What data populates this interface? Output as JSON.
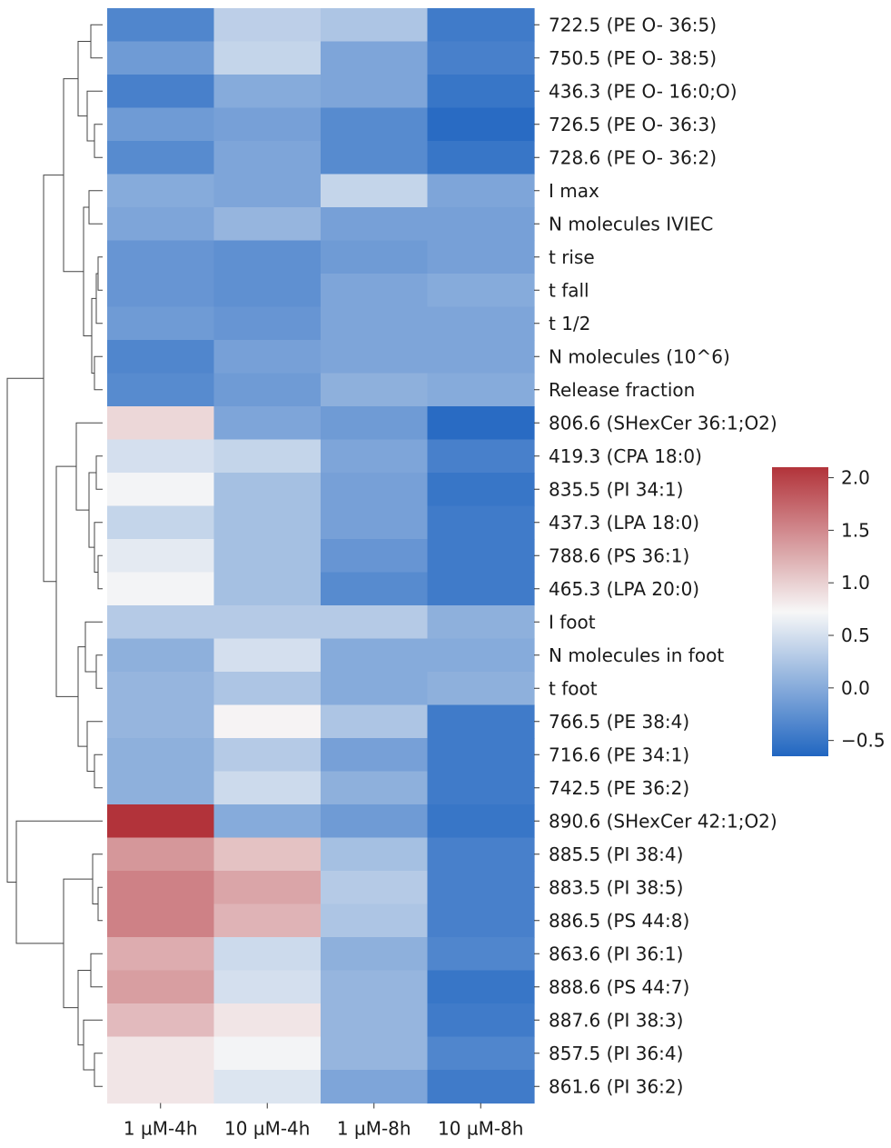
{
  "chart_data": {
    "type": "heatmap",
    "title": "",
    "xlabel": "",
    "ylabel": "",
    "columns": [
      "1 µM-4h",
      "10 µM-4h",
      "1 µM-8h",
      "10 µM-8h"
    ],
    "rows": [
      "722.5 (PE O- 36:5)",
      "750.5 (PE O- 38:5)",
      "436.3 (PE O- 16:0;O)",
      "726.5 (PE O- 36:3)",
      "728.6 (PE O- 36:2)",
      "I max",
      "N molecules IVIEC",
      "t rise",
      "t fall",
      "t 1/2",
      "N molecules (10^6)",
      "Release fraction",
      "806.6 (SHexCer 36:1;O2)",
      "419.3 (CPA 18:0)",
      "835.5 (PI 34:1)",
      "437.3 (LPA 18:0)",
      "788.6 (PS 36:1)",
      "465.3 (LPA 20:0)",
      "I foot",
      "N molecules in foot",
      "t foot",
      "766.5 (PE 38:4)",
      "716.6 (PE 34:1)",
      "742.5 (PE 36:2)",
      "890.6 (SHexCer 42:1;O2)",
      "885.5 (PI 38:4)",
      "883.5 (PI 38:5)",
      "886.5 (PS 44:8)",
      "863.6 (PI 36:1)",
      "888.6 (PS 44:7)",
      "887.6 (PI 38:3)",
      "857.5 (PI 36:4)",
      "861.6 (PI 36:2)"
    ],
    "values": [
      [
        -0.35,
        0.35,
        0.25,
        -0.45
      ],
      [
        -0.15,
        0.4,
        -0.05,
        -0.4
      ],
      [
        -0.4,
        0.0,
        -0.05,
        -0.5
      ],
      [
        -0.15,
        -0.1,
        -0.3,
        -0.6
      ],
      [
        -0.3,
        -0.05,
        -0.3,
        -0.5
      ],
      [
        0.0,
        -0.05,
        0.4,
        -0.05
      ],
      [
        -0.05,
        0.1,
        -0.1,
        -0.1
      ],
      [
        -0.2,
        -0.25,
        -0.15,
        -0.1
      ],
      [
        -0.2,
        -0.25,
        -0.05,
        0.0
      ],
      [
        -0.15,
        -0.2,
        -0.05,
        -0.05
      ],
      [
        -0.35,
        -0.1,
        -0.05,
        -0.05
      ],
      [
        -0.3,
        -0.15,
        0.05,
        0.0
      ],
      [
        0.95,
        -0.05,
        -0.15,
        -0.6
      ],
      [
        0.5,
        0.4,
        -0.05,
        -0.4
      ],
      [
        0.7,
        0.2,
        -0.1,
        -0.5
      ],
      [
        0.4,
        0.2,
        -0.1,
        -0.45
      ],
      [
        0.6,
        0.2,
        -0.2,
        -0.45
      ],
      [
        0.7,
        0.2,
        -0.3,
        -0.45
      ],
      [
        0.3,
        0.3,
        0.3,
        0.05
      ],
      [
        0.05,
        0.5,
        0.0,
        0.0
      ],
      [
        0.1,
        0.25,
        0.0,
        0.05
      ],
      [
        0.1,
        0.75,
        0.25,
        -0.45
      ],
      [
        0.05,
        0.3,
        -0.1,
        -0.45
      ],
      [
        0.05,
        0.45,
        0.05,
        -0.45
      ],
      [
        2.1,
        0.0,
        -0.15,
        -0.5
      ],
      [
        1.4,
        1.1,
        0.2,
        -0.4
      ],
      [
        1.55,
        1.3,
        0.3,
        -0.4
      ],
      [
        1.55,
        1.2,
        0.25,
        -0.4
      ],
      [
        1.25,
        0.45,
        0.05,
        -0.35
      ],
      [
        1.35,
        0.5,
        0.1,
        -0.5
      ],
      [
        1.15,
        0.85,
        0.1,
        -0.45
      ],
      [
        0.85,
        0.7,
        0.1,
        -0.35
      ],
      [
        0.85,
        0.55,
        -0.05,
        -0.45
      ]
    ],
    "colorbar": {
      "min": -0.65,
      "max": 2.1,
      "ticks": [
        2.0,
        1.5,
        1.0,
        0.5,
        0.0,
        -0.5
      ],
      "tick_labels": [
        "2.0",
        "1.5",
        "1.0",
        "0.5",
        "0.0",
        "−0.5"
      ],
      "colors": [
        "#2166c1",
        "#f7f7f7",
        "#b2333a"
      ]
    },
    "dendrogram": "rows, left side"
  }
}
